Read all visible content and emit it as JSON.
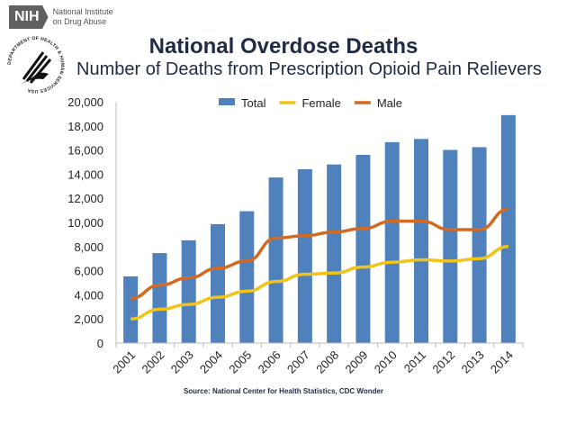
{
  "header": {
    "nih_badge": "NIH",
    "nih_name_line1": "National Institute",
    "nih_name_line2": "on Drug Abuse",
    "hhs_seal_text": "DEPARTMENT OF HEALTH & HUMAN SERVICES USA"
  },
  "chart_data": {
    "type": "bar",
    "title": "National Overdose Deaths",
    "subtitle": "Number of Deaths from Prescription Opioid Pain Relievers",
    "source": "Source: National Center for Health Statistics, CDC Wonder",
    "categories": [
      "2001",
      "2002",
      "2003",
      "2004",
      "2005",
      "2006",
      "2007",
      "2008",
      "2009",
      "2010",
      "2011",
      "2012",
      "2013",
      "2014"
    ],
    "series": [
      {
        "name": "Total",
        "type": "bar",
        "color": "#4f81bd",
        "values": [
          5528,
          7456,
          8517,
          9857,
          10928,
          13723,
          14408,
          14800,
          15597,
          16651,
          16917,
          16007,
          16235,
          18893
        ]
      },
      {
        "name": "Female",
        "type": "line",
        "color": "#f2c318",
        "values": [
          2000,
          2800,
          3200,
          3800,
          4300,
          5100,
          5700,
          5800,
          6300,
          6700,
          6900,
          6800,
          7000,
          8000
        ]
      },
      {
        "name": "Male",
        "type": "line",
        "color": "#d46a22",
        "values": [
          3700,
          4800,
          5400,
          6200,
          6800,
          8700,
          8900,
          9200,
          9500,
          10100,
          10100,
          9400,
          9400,
          11100
        ]
      }
    ],
    "ylim": [
      0,
      20000
    ],
    "yticks": [
      0,
      2000,
      4000,
      6000,
      8000,
      10000,
      12000,
      14000,
      16000,
      18000,
      20000
    ],
    "ytick_labels": [
      "0",
      "2,000",
      "4,000",
      "6,000",
      "8,000",
      "10,000",
      "12,000",
      "14,000",
      "16,000",
      "18,000",
      "20,000"
    ],
    "xlabel": "",
    "ylabel": "",
    "legend": "top-center",
    "grid": false
  }
}
